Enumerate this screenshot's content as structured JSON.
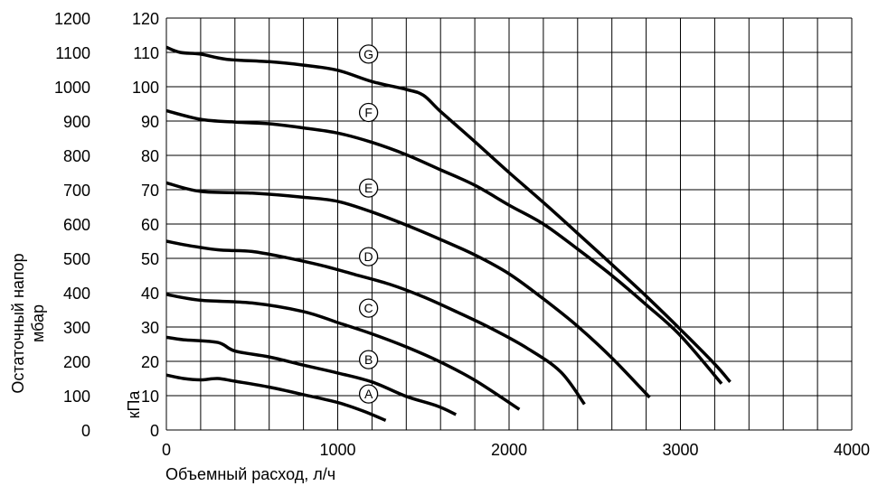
{
  "chart_data": {
    "type": "line",
    "xlabel": "Объемный расход, л/ч",
    "ylabel_left": "Остаточный напор\nмбар",
    "ylabel_right": "кПа",
    "xlim": [
      0,
      4000
    ],
    "ylim_kpa": [
      0,
      120
    ],
    "ylim_mbar": [
      0,
      1200
    ],
    "grid": true,
    "x_ticks": [
      0,
      1000,
      2000,
      3000,
      4000
    ],
    "y_ticks_kpa": [
      0,
      10,
      20,
      30,
      40,
      50,
      60,
      70,
      80,
      90,
      100,
      110,
      120
    ],
    "y_ticks_mbar": [
      0,
      100,
      200,
      300,
      400,
      500,
      600,
      700,
      800,
      900,
      1000,
      1100,
      1200
    ],
    "series": [
      {
        "name": "A",
        "label_at": [
          1180,
          10.5
        ],
        "points": [
          [
            0,
            16
          ],
          [
            100,
            15
          ],
          [
            200,
            14.6
          ],
          [
            300,
            15
          ],
          [
            400,
            14.2
          ],
          [
            600,
            12.5
          ],
          [
            800,
            10.3
          ],
          [
            1000,
            8
          ],
          [
            1150,
            5.5
          ],
          [
            1280,
            2.8
          ]
        ]
      },
      {
        "name": "B",
        "label_at": [
          1180,
          20.5
        ],
        "points": [
          [
            0,
            27
          ],
          [
            100,
            26.3
          ],
          [
            300,
            25.5
          ],
          [
            400,
            23
          ],
          [
            600,
            21.3
          ],
          [
            800,
            18.9
          ],
          [
            1000,
            16.6
          ],
          [
            1200,
            14
          ],
          [
            1400,
            9.8
          ],
          [
            1580,
            7
          ],
          [
            1690,
            4.5
          ]
        ]
      },
      {
        "name": "C",
        "label_at": [
          1180,
          35.5
        ],
        "points": [
          [
            0,
            39.5
          ],
          [
            200,
            37.8
          ],
          [
            500,
            37
          ],
          [
            800,
            34.5
          ],
          [
            1000,
            31.3
          ],
          [
            1200,
            28
          ],
          [
            1400,
            24.2
          ],
          [
            1600,
            19.8
          ],
          [
            1800,
            14.5
          ],
          [
            2060,
            6
          ]
        ]
      },
      {
        "name": "D",
        "label_at": [
          1180,
          50.5
        ],
        "points": [
          [
            0,
            55
          ],
          [
            100,
            54
          ],
          [
            300,
            52.5
          ],
          [
            500,
            52
          ],
          [
            700,
            50.2
          ],
          [
            900,
            48
          ],
          [
            1100,
            45.3
          ],
          [
            1300,
            42.5
          ],
          [
            1500,
            38.8
          ],
          [
            1700,
            34.3
          ],
          [
            1900,
            29.5
          ],
          [
            2100,
            24
          ],
          [
            2300,
            17
          ],
          [
            2440,
            7.5
          ]
        ]
      },
      {
        "name": "E",
        "label_at": [
          1180,
          70.5
        ],
        "points": [
          [
            0,
            72
          ],
          [
            200,
            69.5
          ],
          [
            500,
            69
          ],
          [
            800,
            67.8
          ],
          [
            1000,
            66.6
          ],
          [
            1200,
            63.5
          ],
          [
            1400,
            59.7
          ],
          [
            1600,
            55.5
          ],
          [
            1800,
            51
          ],
          [
            2000,
            45.5
          ],
          [
            2200,
            38.2
          ],
          [
            2400,
            30.2
          ],
          [
            2600,
            21
          ],
          [
            2820,
            9.5
          ]
        ]
      },
      {
        "name": "F",
        "label_at": [
          1180,
          92.5
        ],
        "points": [
          [
            0,
            93
          ],
          [
            200,
            90.5
          ],
          [
            400,
            89.7
          ],
          [
            600,
            89.2
          ],
          [
            800,
            88
          ],
          [
            1000,
            86.5
          ],
          [
            1200,
            83.8
          ],
          [
            1400,
            80.2
          ],
          [
            1600,
            75.8
          ],
          [
            1800,
            71.3
          ],
          [
            2000,
            65.5
          ],
          [
            2200,
            60
          ],
          [
            2400,
            52.7
          ],
          [
            2600,
            45
          ],
          [
            2800,
            36.5
          ],
          [
            3000,
            27.5
          ],
          [
            3240,
            13.5
          ]
        ]
      },
      {
        "name": "G",
        "label_at": [
          1180,
          109.5
        ],
        "points": [
          [
            0,
            111.5
          ],
          [
            80,
            110
          ],
          [
            200,
            109.5
          ],
          [
            350,
            108
          ],
          [
            600,
            107.3
          ],
          [
            800,
            106.3
          ],
          [
            1000,
            104.8
          ],
          [
            1200,
            101.5
          ],
          [
            1400,
            99.2
          ],
          [
            1500,
            97.5
          ],
          [
            1600,
            92.8
          ],
          [
            1800,
            84
          ],
          [
            2000,
            75
          ],
          [
            2200,
            66.3
          ],
          [
            2400,
            57.3
          ],
          [
            2600,
            48.2
          ],
          [
            2800,
            39
          ],
          [
            3000,
            29.3
          ],
          [
            3200,
            19.2
          ],
          [
            3290,
            14
          ]
        ]
      }
    ]
  }
}
